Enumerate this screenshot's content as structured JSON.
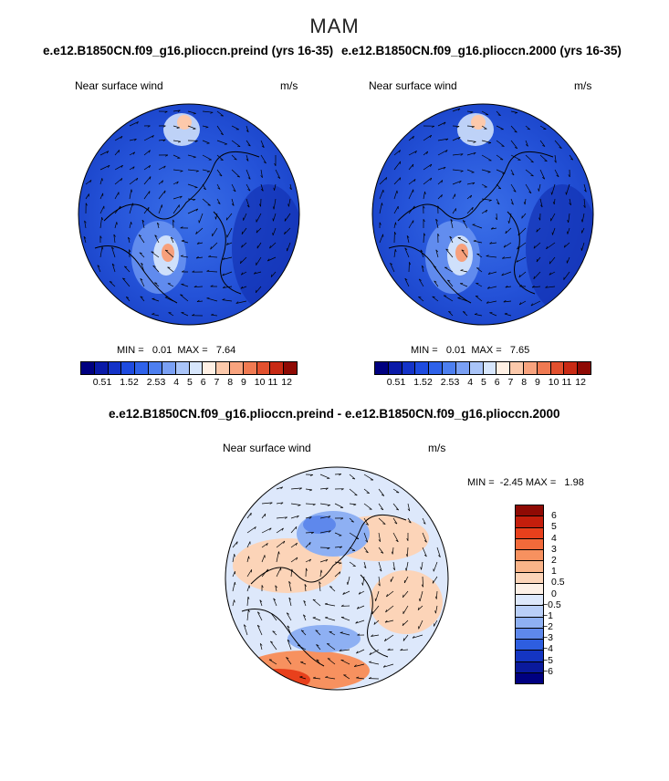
{
  "season": "MAM",
  "panels": [
    {
      "title": "e.e12.B1850CN.f09_g16.plioccn.preind (yrs 16-35)",
      "variable": "Near surface wind",
      "units": "m/s",
      "min_label": "MIN =",
      "min_value": "0.01",
      "max_label": "MAX =",
      "max_value": "7.64",
      "colorbar_ticks": [
        "0.5",
        "1",
        "1.5",
        "2",
        "2.5",
        "3",
        "4",
        "5",
        "6",
        "7",
        "8",
        "9",
        "10",
        "11",
        "12"
      ],
      "colorbar_colors": [
        "#000080",
        "#0a1aa8",
        "#1433c8",
        "#1e4be0",
        "#2f62ea",
        "#4d7ff0",
        "#7aa0f4",
        "#a9c4f8",
        "#d7e6fc",
        "#fff0e4",
        "#fcc9ab",
        "#f8a37e",
        "#f07a52",
        "#e2502e",
        "#c82a14",
        "#8f0a04"
      ]
    },
    {
      "title": "e.e12.B1850CN.f09_g16.plioccn.2000 (yrs 16-35)",
      "variable": "Near surface wind",
      "units": "m/s",
      "min_label": "MIN =",
      "min_value": "0.01",
      "max_label": "MAX =",
      "max_value": "7.65",
      "colorbar_ticks": [
        "0.5",
        "1",
        "1.5",
        "2",
        "2.5",
        "3",
        "4",
        "5",
        "6",
        "7",
        "8",
        "9",
        "10",
        "11",
        "12"
      ],
      "colorbar_colors": [
        "#000080",
        "#0a1aa8",
        "#1433c8",
        "#1e4be0",
        "#2f62ea",
        "#4d7ff0",
        "#7aa0f4",
        "#a9c4f8",
        "#d7e6fc",
        "#fff0e4",
        "#fcc9ab",
        "#f8a37e",
        "#f07a52",
        "#e2502e",
        "#c82a14",
        "#8f0a04"
      ]
    }
  ],
  "difference": {
    "title": "e.e12.B1850CN.f09_g16.plioccn.preind - e.e12.B1850CN.f09_g16.plioccn.2000",
    "variable": "Near surface wind",
    "units": "m/s",
    "min_label": "MIN =",
    "min_value": "-2.45",
    "max_label": "MAX =",
    "max_value": "1.98",
    "colorbar_ticks": [
      "6",
      "5",
      "4",
      "3",
      "2",
      "1",
      "0.5",
      "0",
      "−0.5",
      "−1",
      "−2",
      "−3",
      "−4",
      "−5",
      "−6"
    ],
    "colorbar_colors": [
      "#8f0a04",
      "#c41e0c",
      "#e8401c",
      "#f26a3a",
      "#f7915f",
      "#fab489",
      "#fcd4b8",
      "#fdf0e6",
      "#dde8fb",
      "#b9cff8",
      "#8eb0f3",
      "#5e88ec",
      "#2e5ee0",
      "#1435c2",
      "#0a1a9c",
      "#000080"
    ]
  }
}
